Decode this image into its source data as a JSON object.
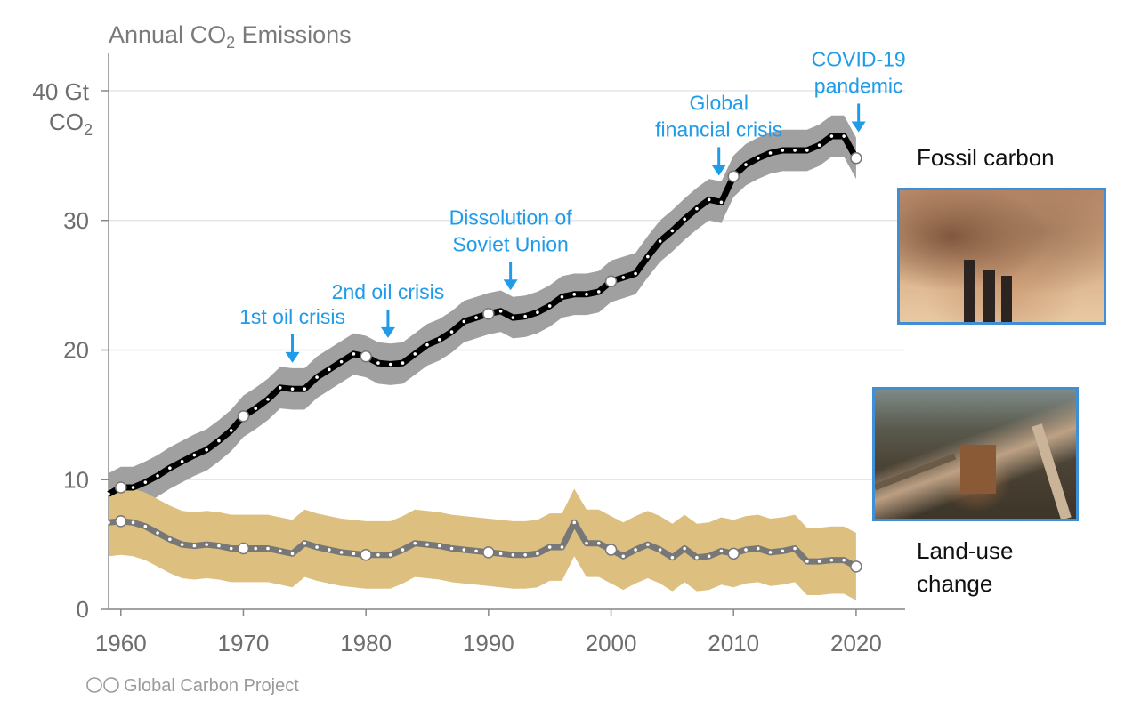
{
  "chart_data": {
    "type": "line",
    "title_main": "Annual CO",
    "title_sub": "2",
    "title_tail": " Emissions",
    "ylabel_line1": "40 Gt",
    "ylabel_line2_main": "CO",
    "ylabel_line2_sub": "2",
    "xlim": [
      1959,
      2024
    ],
    "ylim": [
      0,
      40
    ],
    "x_ticks": [
      1960,
      1970,
      1980,
      1990,
      2000,
      2010,
      2020
    ],
    "x_tick_labels": [
      "1960",
      "1970",
      "1980",
      "1990",
      "2000",
      "2010",
      "2020"
    ],
    "y_ticks": [
      0,
      10,
      20,
      30
    ],
    "y_tick_labels": [
      "0",
      "10",
      "20",
      "30"
    ],
    "grid": true,
    "x": [
      1959,
      1960,
      1961,
      1962,
      1963,
      1964,
      1965,
      1966,
      1967,
      1968,
      1969,
      1970,
      1971,
      1972,
      1973,
      1974,
      1975,
      1976,
      1977,
      1978,
      1979,
      1980,
      1981,
      1982,
      1983,
      1984,
      1985,
      1986,
      1987,
      1988,
      1989,
      1990,
      1991,
      1992,
      1993,
      1994,
      1995,
      1996,
      1997,
      1998,
      1999,
      2000,
      2001,
      2002,
      2003,
      2004,
      2005,
      2006,
      2007,
      2008,
      2009,
      2010,
      2011,
      2012,
      2013,
      2014,
      2015,
      2016,
      2017,
      2018,
      2019,
      2020
    ],
    "series": [
      {
        "name": "Fossil carbon",
        "color": "#000000",
        "band_color": "#a0a0a0",
        "values": [
          8.9,
          9.4,
          9.4,
          9.8,
          10.3,
          10.9,
          11.4,
          11.9,
          12.3,
          13.0,
          13.8,
          14.9,
          15.5,
          16.2,
          17.1,
          17.0,
          17.0,
          17.9,
          18.5,
          19.1,
          19.7,
          19.5,
          19.0,
          18.9,
          19.0,
          19.7,
          20.4,
          20.8,
          21.4,
          22.2,
          22.5,
          22.8,
          23.0,
          22.5,
          22.6,
          22.9,
          23.4,
          24.1,
          24.3,
          24.3,
          24.5,
          25.3,
          25.6,
          25.9,
          27.2,
          28.4,
          29.2,
          30.1,
          30.9,
          31.6,
          31.4,
          33.4,
          34.3,
          34.8,
          35.2,
          35.4,
          35.4,
          35.4,
          35.8,
          36.5,
          36.5,
          34.8
        ],
        "uncertainty": 1.6
      },
      {
        "name": "Land-use change",
        "color": "#777777",
        "band_color": "#ddbf80",
        "values": [
          6.7,
          6.8,
          6.7,
          6.4,
          5.9,
          5.4,
          5.0,
          4.9,
          5.0,
          4.9,
          4.7,
          4.7,
          4.7,
          4.7,
          4.5,
          4.3,
          5.1,
          4.8,
          4.6,
          4.4,
          4.3,
          4.2,
          4.2,
          4.2,
          4.6,
          5.1,
          5.0,
          4.9,
          4.7,
          4.6,
          4.5,
          4.4,
          4.3,
          4.2,
          4.2,
          4.3,
          4.8,
          4.8,
          6.7,
          5.1,
          5.1,
          4.6,
          4.1,
          4.6,
          5.0,
          4.6,
          4.0,
          4.7,
          4.0,
          4.1,
          4.5,
          4.3,
          4.6,
          4.7,
          4.4,
          4.5,
          4.7,
          3.7,
          3.7,
          3.8,
          3.8,
          3.3
        ],
        "uncertainty": 2.6
      }
    ],
    "highlight_years": [
      1960,
      1970,
      1980,
      1990,
      2000,
      2010,
      2020
    ],
    "annotations": [
      {
        "lines": [
          "1st oil crisis"
        ],
        "year": 1974
      },
      {
        "lines": [
          "2nd oil crisis"
        ],
        "year": 1981.8
      },
      {
        "lines": [
          "Dissolution of",
          "Soviet Union"
        ],
        "year": 1991.8
      },
      {
        "lines": [
          "Global",
          "financial crisis"
        ],
        "year": 2008.8
      },
      {
        "lines": [
          "COVID-19",
          "pandemic"
        ],
        "year": 2020.2
      }
    ],
    "series_labels": {
      "fossil": [
        "Fossil carbon"
      ],
      "land": [
        "Land-use",
        "change"
      ]
    },
    "credit": "Global Carbon Project",
    "annotation_color": "#1e9be9"
  },
  "images": {
    "fossil_photo": "smokestacks-photo",
    "land_photo": "deforestation-photo"
  }
}
